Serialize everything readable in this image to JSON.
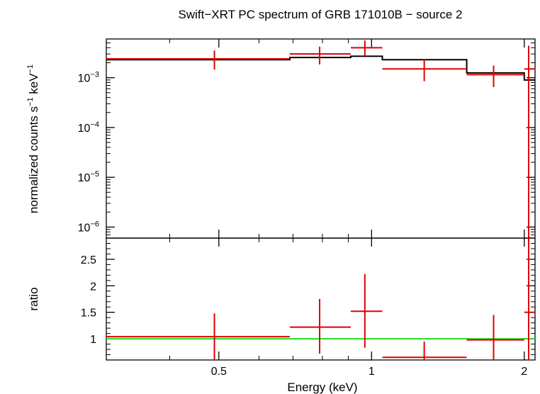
{
  "title": "Swift−XRT PC spectrum of GRB 171010B − source 2",
  "colors": {
    "data": "#e00000",
    "model": "#000000",
    "unity": "#22dd22",
    "frame": "#000000"
  },
  "chart_data": [
    {
      "type": "scatter",
      "panel": "spectrum",
      "xlabel": "Energy (keV)",
      "ylabel_main": "normalized counts s",
      "ylabel_exp1": "−1",
      "ylabel_mid": " keV",
      "ylabel_exp2": "−1",
      "xscale": "log",
      "yscale": "log",
      "xlim": [
        0.3,
        2.1
      ],
      "ylim": [
        6e-07,
        0.006
      ],
      "yticks_major": [
        {
          "value": 0.001,
          "base": "10",
          "exp": "−3"
        },
        {
          "value": 0.0001,
          "base": "10",
          "exp": "−4"
        },
        {
          "value": 1e-05,
          "base": "10",
          "exp": "−5"
        },
        {
          "value": 1e-06,
          "base": "10",
          "exp": "−6"
        }
      ],
      "series": [
        {
          "kind": "data",
          "points": [
            {
              "x": 0.49,
              "xlo": 0.3,
              "xhi": 0.69,
              "y": 0.0024,
              "ylo": 0.00145,
              "yhi": 0.0035
            },
            {
              "x": 0.79,
              "xlo": 0.69,
              "xhi": 0.91,
              "y": 0.003,
              "ylo": 0.00185,
              "yhi": 0.0042
            },
            {
              "x": 0.97,
              "xlo": 0.91,
              "xhi": 1.05,
              "y": 0.004,
              "ylo": 0.0027,
              "yhi": 0.0056
            },
            {
              "x": 1.27,
              "xlo": 1.05,
              "xhi": 1.54,
              "y": 0.0015,
              "ylo": 0.00085,
              "yhi": 0.00235
            },
            {
              "x": 1.74,
              "xlo": 1.54,
              "xhi": 2.0,
              "y": 0.00115,
              "ylo": 0.00065,
              "yhi": 0.00175
            },
            {
              "x": 2.04,
              "xlo": 2.0,
              "xhi": 2.1,
              "y": 0.0015,
              "ylo": 5e-07,
              "yhi": 0.0044
            }
          ]
        },
        {
          "kind": "model",
          "steps": [
            {
              "xlo": 0.3,
              "xhi": 0.69,
              "y": 0.0023
            },
            {
              "xlo": 0.69,
              "xhi": 0.91,
              "y": 0.00255
            },
            {
              "xlo": 0.91,
              "xhi": 1.05,
              "y": 0.0027
            },
            {
              "xlo": 1.05,
              "xhi": 1.54,
              "y": 0.0023
            },
            {
              "xlo": 1.54,
              "xhi": 2.0,
              "y": 0.00125
            },
            {
              "xlo": 2.0,
              "xhi": 2.1,
              "y": 0.0009
            }
          ]
        }
      ]
    },
    {
      "type": "scatter",
      "panel": "ratio",
      "xlabel": "Energy (keV)",
      "ylabel": "ratio",
      "xscale": "log",
      "xlim": [
        0.3,
        2.1
      ],
      "ylim": [
        0.6,
        2.9
      ],
      "xticks_major": [
        {
          "value": 0.5,
          "label": "0.5"
        },
        {
          "value": 1,
          "label": "1"
        },
        {
          "value": 2,
          "label": "2"
        }
      ],
      "yticks_major": [
        {
          "value": 1,
          "label": "1"
        },
        {
          "value": 1.5,
          "label": "1.5"
        },
        {
          "value": 2,
          "label": "2"
        },
        {
          "value": 2.5,
          "label": "2.5"
        }
      ],
      "unity_line": 1,
      "points": [
        {
          "x": 0.49,
          "xlo": 0.3,
          "xhi": 0.69,
          "y": 1.04,
          "ylo": 0.57,
          "yhi": 1.48
        },
        {
          "x": 0.79,
          "xlo": 0.69,
          "xhi": 0.91,
          "y": 1.22,
          "ylo": 0.72,
          "yhi": 1.75
        },
        {
          "x": 0.97,
          "xlo": 0.91,
          "xhi": 1.05,
          "y": 1.52,
          "ylo": 0.83,
          "yhi": 2.22
        },
        {
          "x": 1.27,
          "xlo": 1.05,
          "xhi": 1.54,
          "y": 0.65,
          "ylo": 0.55,
          "yhi": 0.95
        },
        {
          "x": 1.74,
          "xlo": 1.54,
          "xhi": 2.0,
          "y": 0.98,
          "ylo": 0.55,
          "yhi": 1.45
        },
        {
          "x": 2.04,
          "xlo": 2.0,
          "xhi": 2.1,
          "y": 1.5,
          "ylo": 0.55,
          "yhi": 2.9
        }
      ]
    }
  ]
}
